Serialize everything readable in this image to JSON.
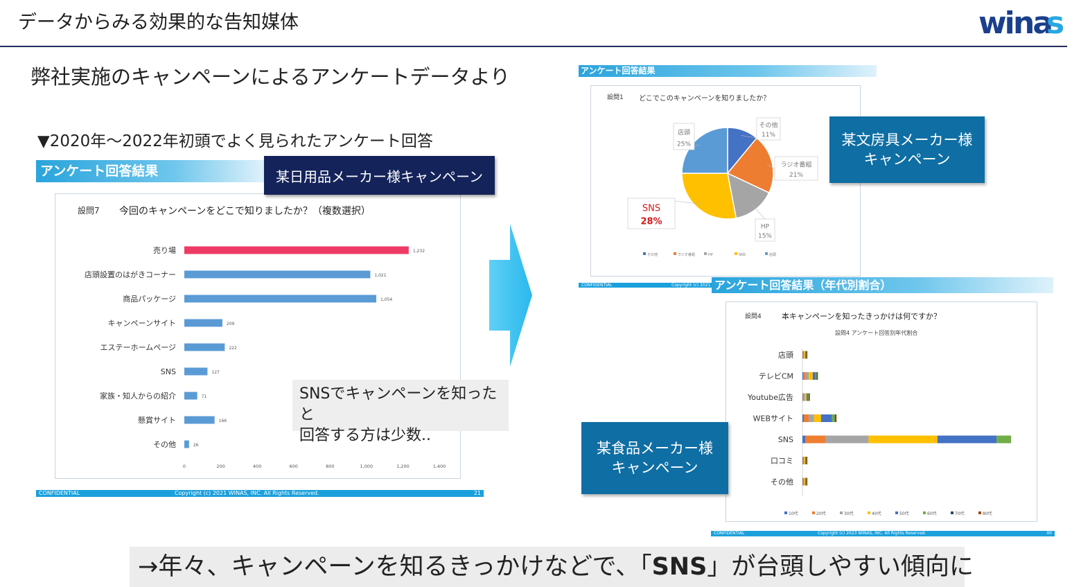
{
  "header": {
    "title": "データからみる効果的な告知媒体",
    "logo_text": "winas"
  },
  "subtitle": "弊社実施のキャンペーンによるアンケートデータより",
  "period": "▼2020年〜2022年初頭でよく見られたアンケート回答",
  "left_panel": {
    "bar_title": "アンケート回答結果",
    "campaign_label": "某日用品メーカー様キャンペーン",
    "question_number": "設問7",
    "question_text": "今回のキャンペーンをどこで知りましたか？（複数選択）",
    "callout": [
      "SNSでキャンペーンを知ったと",
      "回答する方は少数.."
    ],
    "footer_confidential": "CONFIDENTIAL",
    "footer_copyright": "Copyright (c) 2021 WINAS, INC. All Rights Reserved.",
    "footer_page": "21"
  },
  "right_top_panel": {
    "bar_title": "アンケート回答結果",
    "question_number": "設問1",
    "question_text": "どこでこのキャンペーンを知りましたか？",
    "campaign_label": [
      "某文房具メーカー様",
      "キャンペーン"
    ],
    "footer_confidential": "CONFIDENTIAL",
    "footer_copyright": "Copyright (c) 2021"
  },
  "right_bottom_panel": {
    "bar_title": "アンケート回答結果（年代別割合）",
    "question_number": "設問4",
    "question_text": "本キャンペーンを知ったきっかけは何ですか？",
    "chart_subtitle": "設問4 アンケート回答別年代割合",
    "campaign_label": [
      "某食品メーカー様",
      "キャンペーン"
    ],
    "footer_confidential": "CONFIDENTIAL",
    "footer_copyright": "Copyright (c) 2023 WINAS, INC. All Rights Reserved.",
    "footer_page": "00"
  },
  "conclusion": {
    "prefix": "→年々、キャンペーンを知るきっかけなどで、「",
    "keyword": "SNS",
    "suffix": "」が台頭しやすい傾向に"
  },
  "colors": {
    "navy": "#14235a",
    "teal": "#0f6ea3",
    "accent_blue": "#1ba0dc",
    "bar_blue": "#5b9bd5",
    "bar_highlight": "#ee3a64"
  },
  "chart_data": [
    {
      "type": "bar",
      "orientation": "horizontal",
      "categories": [
        "売り場",
        "店頭設置のはがきコーナー",
        "商品パッケージ",
        "キャンペーンサイト",
        "エステーホームページ",
        "SNS",
        "家族・知人からの紹介",
        "懸賞サイト",
        "その他"
      ],
      "values": [
        1232,
        1021,
        1054,
        209,
        222,
        127,
        71,
        166,
        26
      ],
      "value_labels": [
        "1,232",
        "1,021",
        "1,054",
        "209",
        "222",
        "127",
        "71",
        "166",
        "26"
      ],
      "highlight_index": 0,
      "xlim": [
        0,
        1400
      ],
      "xticks": [
        0,
        200,
        400,
        600,
        800,
        1000,
        1200,
        1400
      ],
      "xtick_labels": [
        "0",
        "200",
        "400",
        "600",
        "800",
        "1,000",
        "1,200",
        "1,400"
      ]
    },
    {
      "type": "pie",
      "labels": [
        "その他",
        "ラジオ番組",
        "HP",
        "SNS",
        "店頭"
      ],
      "values": [
        11,
        21,
        15,
        28,
        25
      ],
      "value_labels": [
        "11%",
        "21%",
        "15%",
        "28%",
        "25%"
      ],
      "colors": [
        "#4472c4",
        "#ed7d31",
        "#a5a5a5",
        "#ffc000",
        "#5b9bd5"
      ],
      "legend": [
        "その他",
        "ラジオ番組",
        "HP",
        "SNS",
        "店頭"
      ],
      "legend_position": "bottom"
    },
    {
      "type": "bar",
      "orientation": "horizontal",
      "stacked": true,
      "categories": [
        "店頭",
        "テレビCM",
        "Youtube広告",
        "WEBサイト",
        "SNS",
        "口コミ",
        "その他"
      ],
      "series": [
        {
          "name": "10代",
          "color": "#4472c4",
          "values": [
            5,
            10,
            5,
            20,
            40,
            5,
            5
          ]
        },
        {
          "name": "20代",
          "color": "#ed7d31",
          "values": [
            10,
            30,
            10,
            70,
            300,
            10,
            10
          ]
        },
        {
          "name": "30代",
          "color": "#a5a5a5",
          "values": [
            10,
            50,
            20,
            80,
            620,
            10,
            10
          ]
        },
        {
          "name": "40代",
          "color": "#ffc000",
          "values": [
            15,
            60,
            25,
            100,
            1000,
            15,
            15
          ]
        },
        {
          "name": "50代",
          "color": "#4472c4",
          "values": [
            10,
            40,
            20,
            160,
            860,
            10,
            10
          ]
        },
        {
          "name": "60代",
          "color": "#70ad47",
          "values": [
            5,
            15,
            10,
            40,
            210,
            5,
            5
          ]
        },
        {
          "name": "70代",
          "color": "#264478",
          "values": [
            2,
            5,
            3,
            10,
            0,
            2,
            2
          ]
        },
        {
          "name": "80代",
          "color": "#9e480e",
          "values": [
            1,
            2,
            1,
            5,
            0,
            1,
            1
          ]
        }
      ],
      "xlim": [
        0,
        3300
      ]
    }
  ]
}
